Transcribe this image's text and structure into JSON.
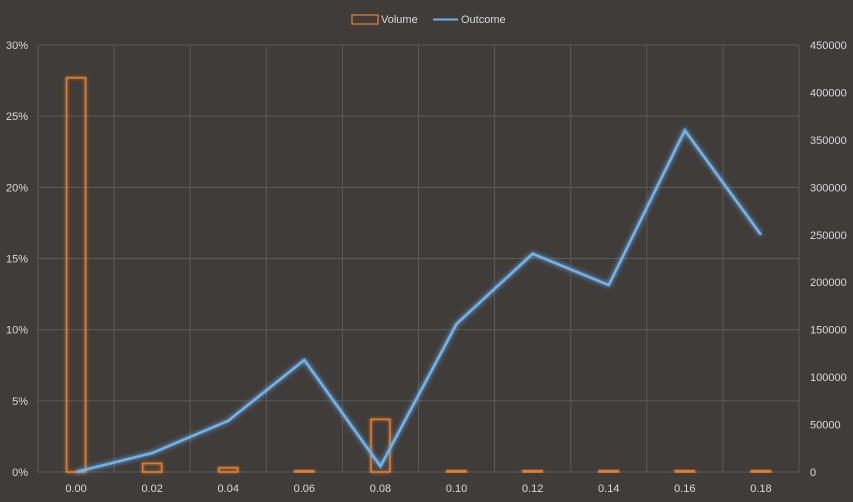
{
  "chart_data": {
    "type": "bar",
    "categories": [
      "0.00",
      "0.02",
      "0.04",
      "0.06",
      "0.08",
      "0.10",
      "0.12",
      "0.14",
      "0.16",
      "0.18"
    ],
    "series": [
      {
        "name": "Volume",
        "type": "bar",
        "axis": "left",
        "values": [
          0.277,
          0.006,
          0.003,
          0.001,
          0.037,
          0.001,
          0.001,
          0.001,
          0.001,
          0.001
        ]
      },
      {
        "name": "Outcome",
        "type": "line",
        "axis": "right",
        "values": [
          0,
          20000,
          54000,
          118000,
          6000,
          156000,
          230000,
          197000,
          360000,
          250000
        ]
      }
    ],
    "y_left": {
      "ticks": [
        "0%",
        "5%",
        "10%",
        "15%",
        "20%",
        "25%",
        "30%"
      ],
      "min": 0,
      "max": 0.3
    },
    "y_right": {
      "ticks": [
        "0",
        "50000",
        "100000",
        "150000",
        "200000",
        "250000",
        "300000",
        "350000",
        "400000",
        "450000"
      ],
      "min": 0,
      "max": 450000
    },
    "grid": true,
    "legend_position": "top-center",
    "colors": {
      "Volume": "#e07b2e",
      "Outcome": "#6fb2ec",
      "background": "#403c39",
      "grid": "#5d5956",
      "text": "#d9d9d9"
    }
  }
}
